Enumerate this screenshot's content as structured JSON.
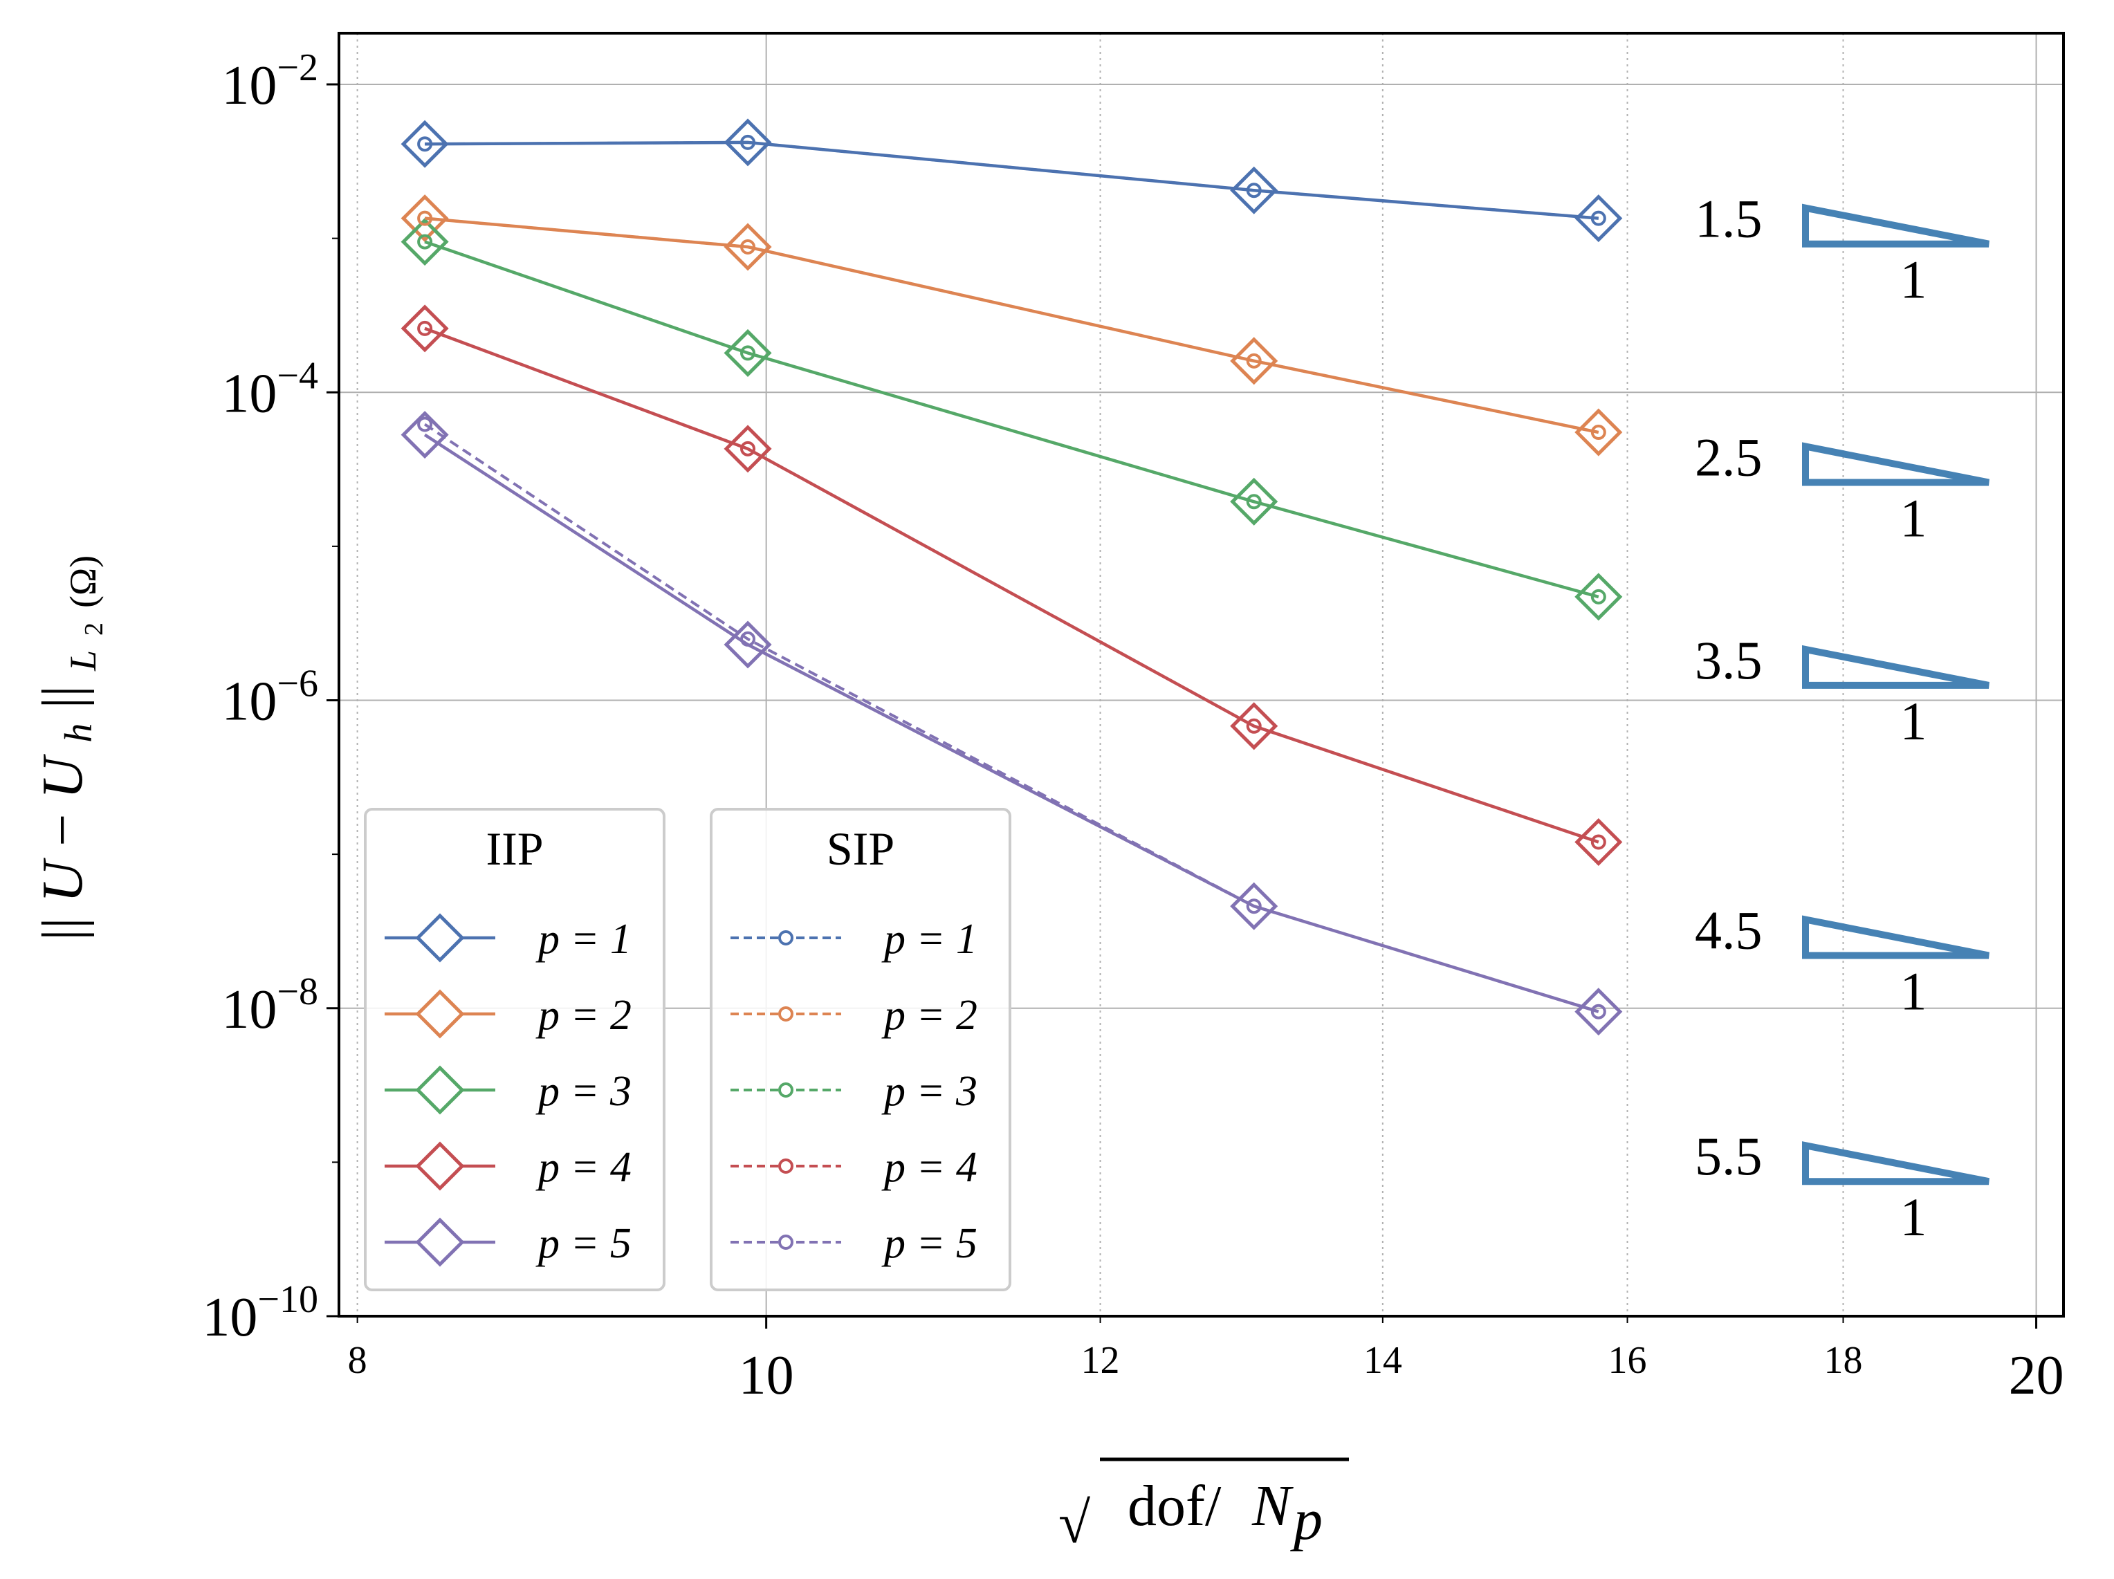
{
  "chart_data": {
    "type": "line",
    "xscale": "log",
    "yscale": "log",
    "xlim": [
      7.92,
      20.3
    ],
    "ylim": [
      1e-10,
      0.0215
    ],
    "xlabel": "√dof/N_p",
    "xlabel_parts": {
      "radical": "√",
      "text": "dof/",
      "var": "N",
      "sub": "p"
    },
    "ylabel": "||U − U_h||_{L2(Ω)}",
    "ylabel_parts": {
      "left": "||",
      "U": "U",
      "minus": " − ",
      "Uh": "U",
      "h": "h",
      "right": "||",
      "L": "L",
      "two": "2",
      "omega": "(Ω)"
    },
    "xticks_major": [
      {
        "value": 10,
        "label": "10"
      },
      {
        "value": 20,
        "label": "20"
      }
    ],
    "xticks_minor": [
      {
        "value": 8,
        "label": "8"
      },
      {
        "value": 12,
        "label": "12"
      },
      {
        "value": 14,
        "label": "14"
      },
      {
        "value": 16,
        "label": "16"
      },
      {
        "value": 18,
        "label": "18"
      }
    ],
    "yticks": [
      {
        "value": 0.01,
        "base": "10",
        "exp": "−2"
      },
      {
        "value": 0.0001,
        "base": "10",
        "exp": "−4"
      },
      {
        "value": 1e-06,
        "base": "10",
        "exp": "−6"
      },
      {
        "value": 1e-08,
        "base": "10",
        "exp": "−8"
      },
      {
        "value": 1e-10,
        "base": "10",
        "exp": "−10"
      }
    ],
    "grid": true,
    "x": [
      8.3,
      9.9,
      13.05,
      15.75
    ],
    "series": [
      {
        "name": "p = 1",
        "group": "IIP",
        "color": "#4C72B0",
        "values": [
          0.0041,
          0.0042,
          0.00205,
          0.00135
        ]
      },
      {
        "name": "p = 2",
        "group": "IIP",
        "color": "#DD8452",
        "values": [
          0.00135,
          0.00088,
          0.00016,
          5.5e-05
        ]
      },
      {
        "name": "p = 3",
        "group": "IIP",
        "color": "#55A868",
        "values": [
          0.00095,
          0.00018,
          1.95e-05,
          4.7e-06
        ]
      },
      {
        "name": "p = 4",
        "group": "IIP",
        "color": "#C44E52",
        "values": [
          0.00026,
          4.3e-05,
          6.8e-07,
          1.2e-07
        ]
      },
      {
        "name": "p = 5",
        "group": "IIP",
        "color": "#8172B3",
        "values": [
          5.3e-05,
          2.3e-06,
          4.6e-08,
          9.5e-09
        ]
      },
      {
        "name": "p = 1",
        "group": "SIP",
        "color": "#4C72B0",
        "values": [
          0.0041,
          0.0042,
          0.00205,
          0.00135
        ]
      },
      {
        "name": "p = 2",
        "group": "SIP",
        "color": "#DD8452",
        "values": [
          0.00135,
          0.00088,
          0.00016,
          5.5e-05
        ]
      },
      {
        "name": "p = 3",
        "group": "SIP",
        "color": "#55A868",
        "values": [
          0.00095,
          0.00018,
          1.95e-05,
          4.7e-06
        ]
      },
      {
        "name": "p = 4",
        "group": "SIP",
        "color": "#C44E52",
        "values": [
          0.00026,
          4.3e-05,
          6.8e-07,
          1.2e-07
        ]
      },
      {
        "name": "p = 5",
        "group": "SIP",
        "color": "#8172B3",
        "values": [
          6.2e-05,
          2.5e-06,
          4.6e-08,
          9.5e-09
        ]
      }
    ],
    "legends": [
      {
        "title": "IIP",
        "style": "solid-diamond",
        "entries": [
          "p = 1",
          "p = 2",
          "p = 3",
          "p = 4",
          "p = 5"
        ]
      },
      {
        "title": "SIP",
        "style": "dashed-circle",
        "entries": [
          "p = 1",
          "p = 2",
          "p = 3",
          "p = 4",
          "p = 5"
        ]
      }
    ],
    "slope_triangles": [
      {
        "slope": "1.5",
        "run": "1",
        "y_anchor": 0.00092
      },
      {
        "slope": "2.5",
        "run": "1",
        "y_anchor": 2.6e-05
      },
      {
        "slope": "3.5",
        "run": "1",
        "y_anchor": 1.25e-06
      },
      {
        "slope": "4.5",
        "run": "1",
        "y_anchor": 2.2e-08
      },
      {
        "slope": "5.5",
        "run": "1",
        "y_anchor": 7.5e-10
      }
    ],
    "triangle_color": "#4682B4",
    "legend_symbols": {
      "p": "p",
      "eq": "=",
      "nums": [
        "1",
        "2",
        "3",
        "4",
        "5"
      ]
    }
  }
}
